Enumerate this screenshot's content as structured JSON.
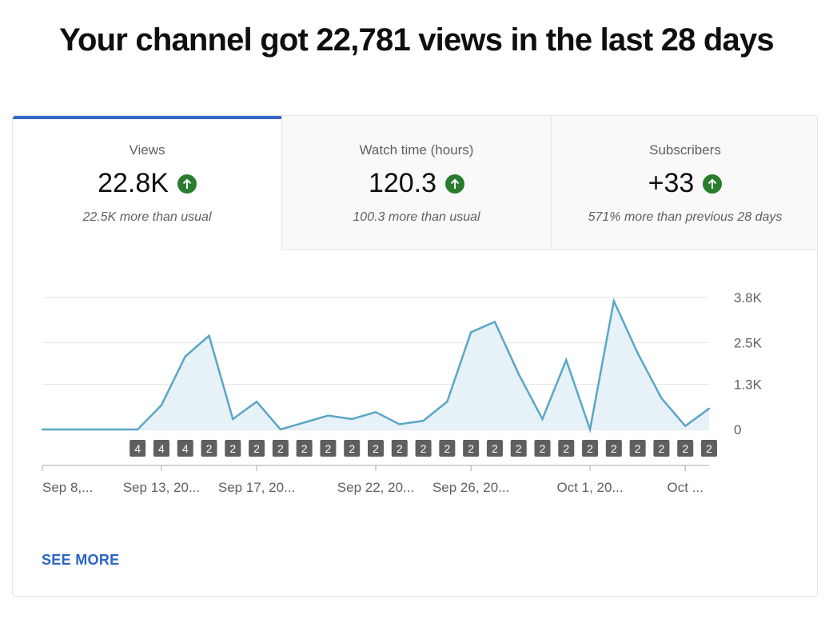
{
  "headline": "Your channel got 22,781 views in the last 28 days",
  "tabs": [
    {
      "label": "Views",
      "value": "22.8K",
      "sub": "22.5K more than usual",
      "active": true
    },
    {
      "label": "Watch time (hours)",
      "value": "120.3",
      "sub": "100.3 more than usual",
      "active": false
    },
    {
      "label": "Subscribers",
      "value": "+33",
      "sub": "571% more than previous 28 days",
      "active": false
    }
  ],
  "see_more": "SEE MORE",
  "colors": {
    "accent": "#3669c9",
    "line": "#5aa6c7",
    "up": "#2a7d2e",
    "link": "#2a64c5"
  },
  "chart_data": {
    "type": "area",
    "series": [
      {
        "values": [
          0,
          0,
          0,
          0,
          0,
          700,
          2100,
          2700,
          300,
          800,
          0,
          200,
          400,
          300,
          500,
          150,
          250,
          800,
          2800,
          3100,
          1600,
          300,
          2000,
          0,
          3700,
          2200,
          900,
          100,
          600
        ]
      }
    ],
    "ylim": [
      0,
      3800
    ],
    "yticks": [
      "3.8K",
      "2.5K",
      "1.3K",
      "0"
    ],
    "ytick_values": [
      3800,
      2500,
      1300,
      0
    ],
    "xtick_labels": [
      {
        "index": 0,
        "label": "Sep 8,..."
      },
      {
        "index": 5,
        "label": "Sep 13, 20..."
      },
      {
        "index": 9,
        "label": "Sep 17, 20..."
      },
      {
        "index": 14,
        "label": "Sep 22, 20..."
      },
      {
        "index": 18,
        "label": "Sep 26, 20..."
      },
      {
        "index": 23,
        "label": "Oct 1, 20..."
      },
      {
        "index": 27,
        "label": "Oct ..."
      }
    ],
    "badges": [
      {
        "index": 4,
        "label": "4"
      },
      {
        "index": 5,
        "label": "4"
      },
      {
        "index": 6,
        "label": "4"
      },
      {
        "index": 7,
        "label": "2"
      },
      {
        "index": 8,
        "label": "2"
      },
      {
        "index": 9,
        "label": "2"
      },
      {
        "index": 10,
        "label": "2"
      },
      {
        "index": 11,
        "label": "2"
      },
      {
        "index": 12,
        "label": "2"
      },
      {
        "index": 13,
        "label": "2"
      },
      {
        "index": 14,
        "label": "2"
      },
      {
        "index": 15,
        "label": "2"
      },
      {
        "index": 16,
        "label": "2"
      },
      {
        "index": 17,
        "label": "2"
      },
      {
        "index": 18,
        "label": "2"
      },
      {
        "index": 19,
        "label": "2"
      },
      {
        "index": 20,
        "label": "2"
      },
      {
        "index": 21,
        "label": "2"
      },
      {
        "index": 22,
        "label": "2"
      },
      {
        "index": 23,
        "label": "2"
      },
      {
        "index": 24,
        "label": "2"
      },
      {
        "index": 25,
        "label": "2"
      },
      {
        "index": 26,
        "label": "2"
      },
      {
        "index": 27,
        "label": "2"
      },
      {
        "index": 28,
        "label": "2"
      }
    ]
  }
}
